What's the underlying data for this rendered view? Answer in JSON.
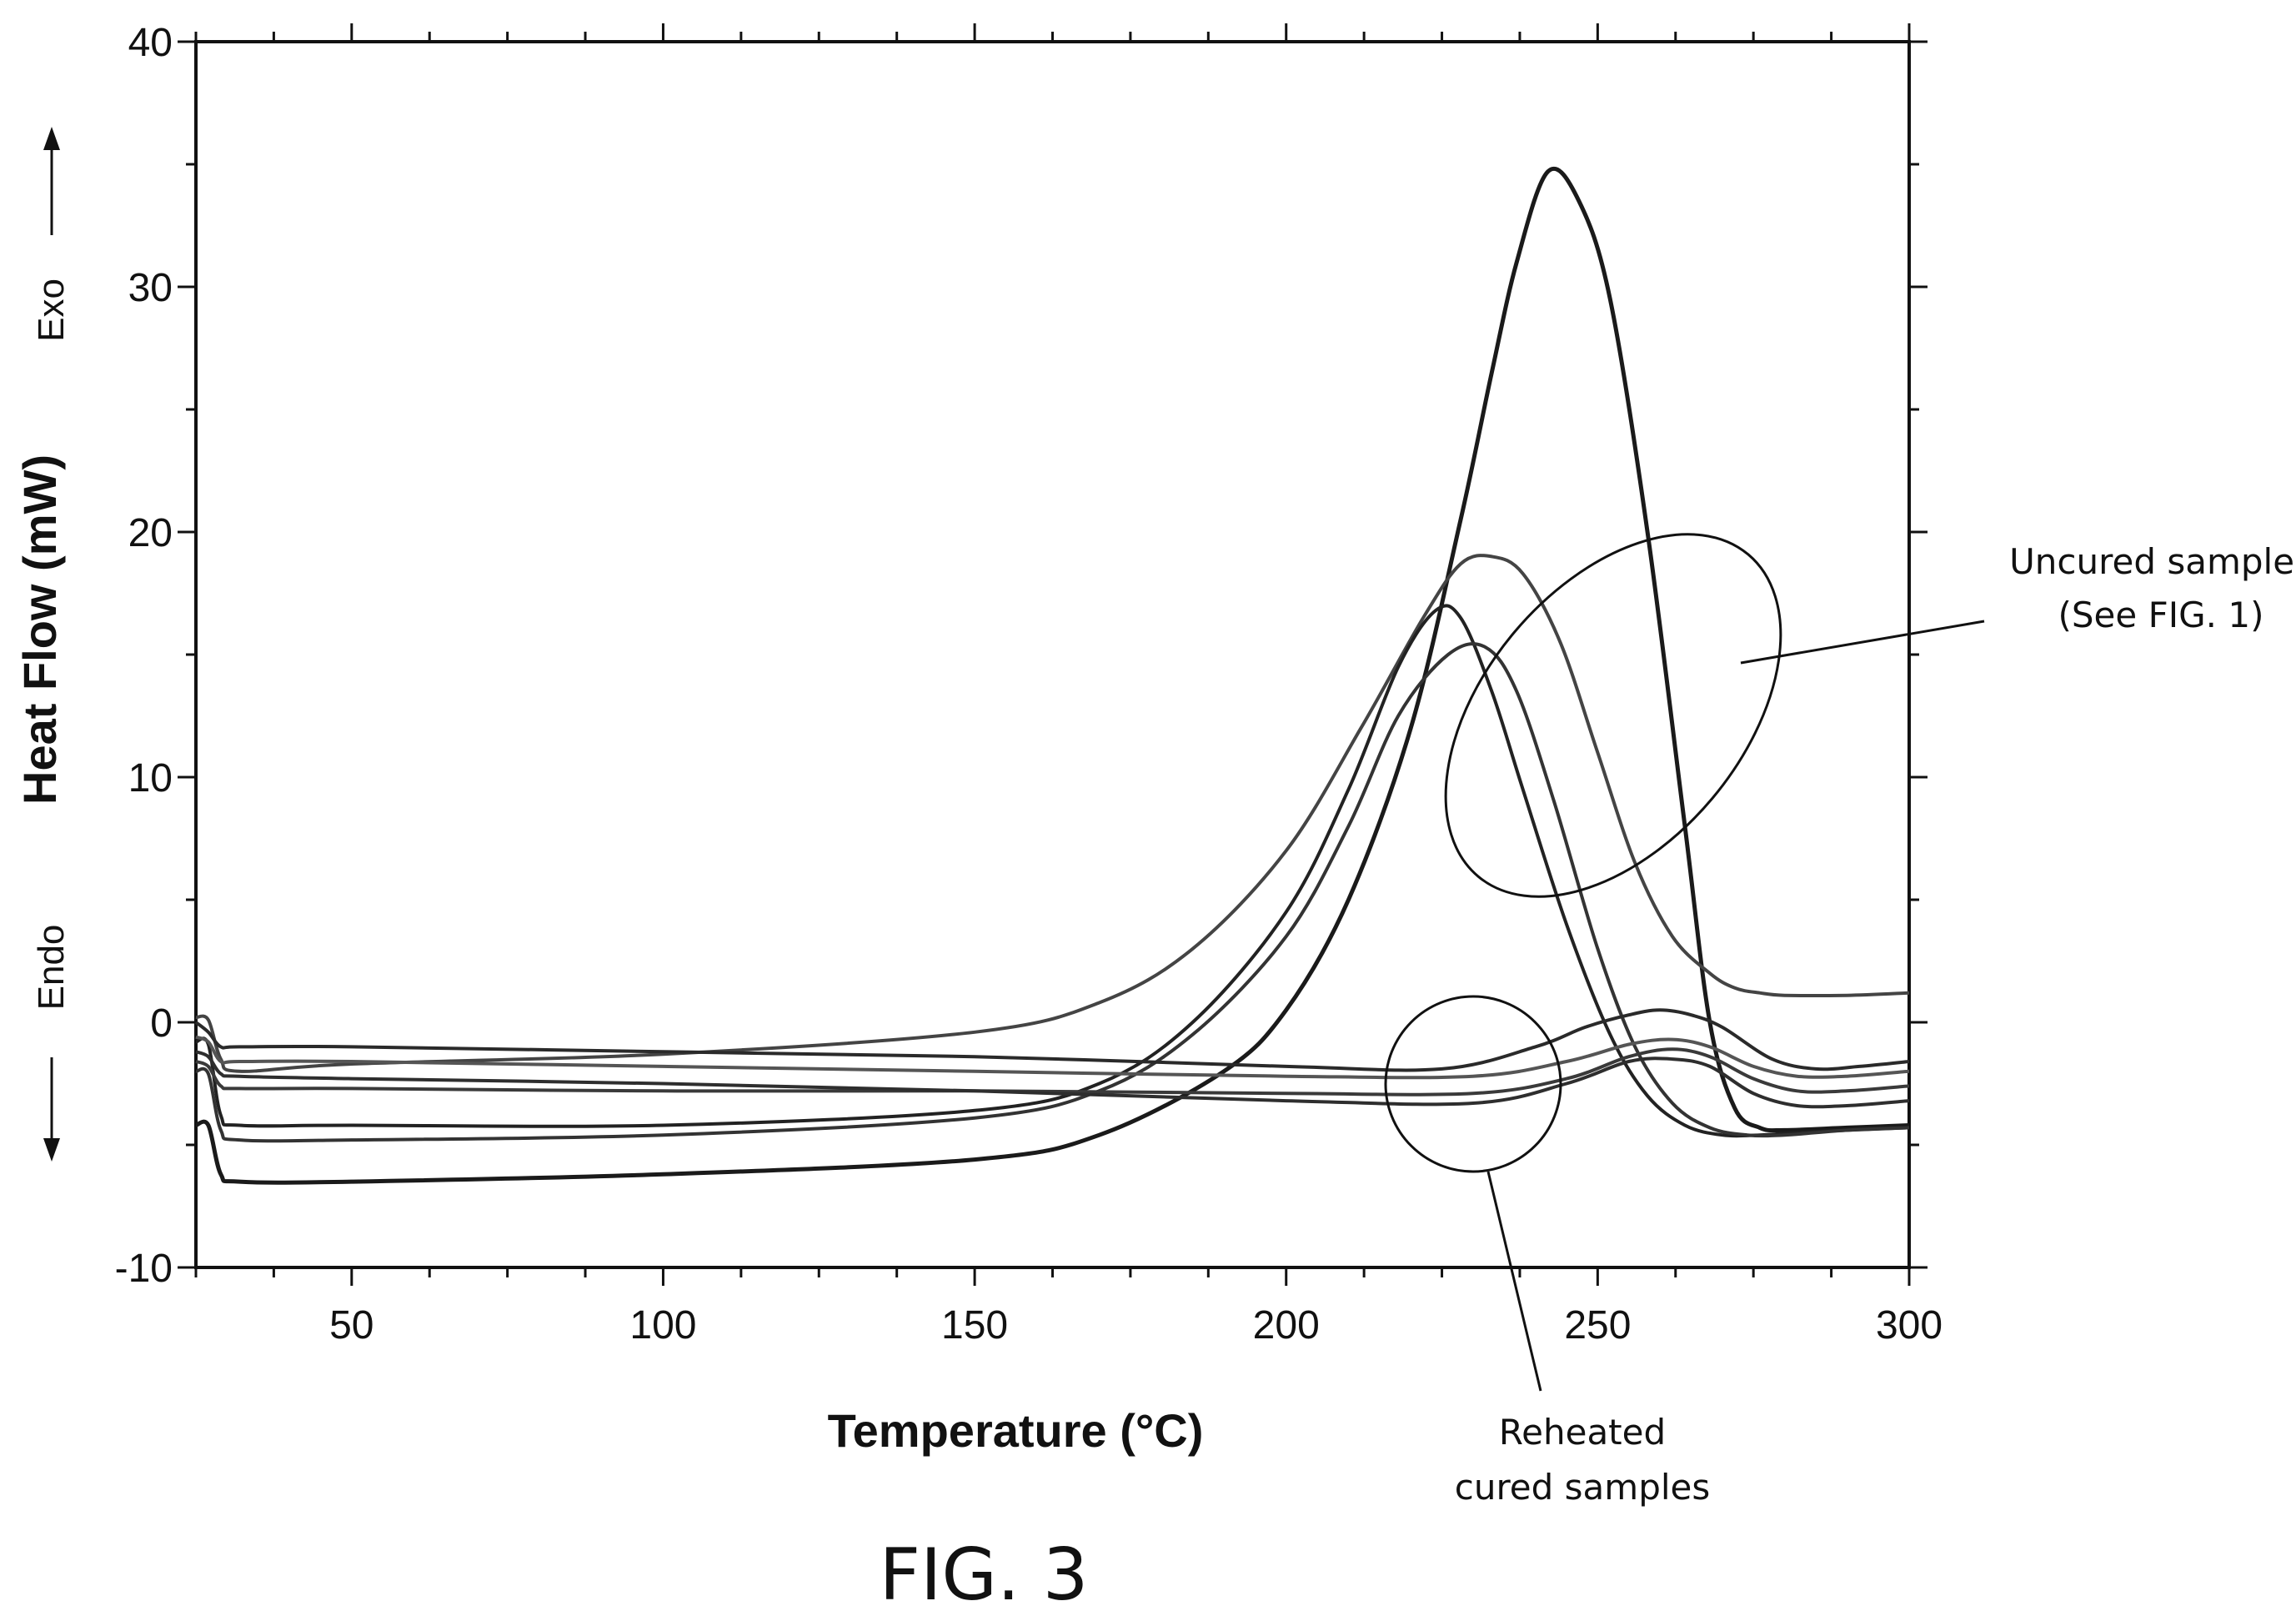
{
  "chart_data": {
    "type": "line",
    "title": "",
    "xlabel": "Temperature (°C)",
    "ylabel": "Heat Flow (mW)",
    "exo_label": "Exo",
    "endo_label": "Endo",
    "xlim": [
      25,
      300
    ],
    "ylim": [
      -10,
      40
    ],
    "x_ticks": [
      50,
      100,
      150,
      200,
      250,
      300
    ],
    "y_ticks": [
      -10,
      0,
      10,
      20,
      30,
      40
    ],
    "grid": false,
    "figure_label": "FIG. 3",
    "annotations": [
      {
        "name": "uncured",
        "lines": [
          "Uncured samples",
          "(See FIG. 1)"
        ]
      },
      {
        "name": "reheated",
        "lines": [
          "Reheated",
          "cured samples"
        ]
      }
    ],
    "series": [
      {
        "group": "uncured",
        "x": [
          25,
          27,
          29,
          32,
          50,
          100,
          150,
          170,
          190,
          200,
          210,
          220,
          228,
          233,
          237,
          242,
          247,
          252,
          258,
          264,
          268,
          272,
          276,
          280,
          290,
          300
        ],
        "y": [
          -4.2,
          -4.2,
          -6.2,
          -6.5,
          -6.5,
          -6.2,
          -5.6,
          -4.6,
          -2.0,
          0.5,
          5.0,
          12.0,
          20.5,
          26.5,
          31.0,
          34.7,
          33.5,
          29.5,
          20.0,
          8.0,
          0.0,
          -3.5,
          -4.3,
          -4.4,
          -4.3,
          -4.2
        ]
      },
      {
        "group": "uncured",
        "x": [
          25,
          27,
          29,
          32,
          50,
          100,
          150,
          170,
          185,
          200,
          212,
          222,
          228,
          233,
          238,
          244,
          250,
          256,
          262,
          268,
          272,
          276,
          280,
          290,
          300
        ],
        "y": [
          0.2,
          0.1,
          -1.5,
          -2.0,
          -1.7,
          -1.3,
          -0.4,
          0.8,
          3.0,
          7.0,
          12.0,
          16.5,
          18.7,
          19.0,
          18.3,
          15.5,
          11.0,
          6.5,
          3.5,
          2.0,
          1.4,
          1.2,
          1.1,
          1.1,
          1.2
        ]
      },
      {
        "group": "uncured",
        "x": [
          25,
          27,
          29,
          32,
          50,
          100,
          150,
          170,
          185,
          200,
          210,
          218,
          224,
          228,
          233,
          238,
          245,
          252,
          258,
          264,
          270,
          276,
          282,
          290,
          300
        ],
        "y": [
          -0.8,
          -0.9,
          -3.8,
          -4.2,
          -4.2,
          -4.2,
          -3.6,
          -2.5,
          0.0,
          4.5,
          9.5,
          14.5,
          16.8,
          16.5,
          13.5,
          9.5,
          4.0,
          -0.5,
          -3.0,
          -4.2,
          -4.6,
          -4.6,
          -4.5,
          -4.4,
          -4.3
        ]
      },
      {
        "group": "uncured",
        "x": [
          25,
          27,
          29,
          32,
          50,
          100,
          150,
          170,
          185,
          200,
          210,
          218,
          226,
          232,
          237,
          243,
          250,
          256,
          262,
          268,
          274,
          280,
          290,
          300
        ],
        "y": [
          -2.0,
          -2.1,
          -4.4,
          -4.8,
          -4.8,
          -4.6,
          -3.9,
          -2.8,
          -0.5,
          3.5,
          8.0,
          12.5,
          15.0,
          15.3,
          13.5,
          9.0,
          3.0,
          -1.0,
          -3.3,
          -4.3,
          -4.6,
          -4.6,
          -4.4,
          -4.3
        ]
      },
      {
        "group": "reheated",
        "x": [
          25,
          27,
          29,
          32,
          50,
          100,
          150,
          200,
          225,
          240,
          248,
          255,
          260,
          265,
          270,
          278,
          285,
          292,
          300
        ],
        "y": [
          0.0,
          -0.4,
          -1.0,
          -1.0,
          -1.0,
          -1.2,
          -1.4,
          -1.8,
          -1.9,
          -1.0,
          -0.2,
          0.3,
          0.5,
          0.3,
          -0.2,
          -1.5,
          -1.9,
          -1.8,
          -1.6
        ]
      },
      {
        "group": "reheated",
        "x": [
          25,
          27,
          29,
          32,
          50,
          100,
          150,
          200,
          230,
          245,
          255,
          262,
          268,
          275,
          282,
          290,
          300
        ],
        "y": [
          -0.6,
          -0.8,
          -1.6,
          -1.6,
          -1.6,
          -1.8,
          -2.0,
          -2.2,
          -2.2,
          -1.6,
          -0.9,
          -0.7,
          -1.0,
          -1.8,
          -2.2,
          -2.2,
          -2.0
        ]
      },
      {
        "group": "reheated",
        "x": [
          25,
          27,
          29,
          32,
          50,
          100,
          150,
          200,
          230,
          245,
          255,
          262,
          268,
          275,
          282,
          290,
          300
        ],
        "y": [
          -1.6,
          -1.8,
          -2.6,
          -2.7,
          -2.7,
          -2.8,
          -2.8,
          -2.9,
          -2.9,
          -2.3,
          -1.4,
          -1.1,
          -1.4,
          -2.3,
          -2.8,
          -2.8,
          -2.6
        ]
      },
      {
        "group": "reheated",
        "x": [
          25,
          27,
          29,
          32,
          50,
          100,
          150,
          200,
          230,
          245,
          255,
          262,
          268,
          275,
          282,
          290,
          300
        ],
        "y": [
          -1.2,
          -1.4,
          -2.1,
          -2.2,
          -2.3,
          -2.5,
          -2.8,
          -3.2,
          -3.3,
          -2.5,
          -1.6,
          -1.5,
          -1.8,
          -2.9,
          -3.4,
          -3.4,
          -3.2
        ]
      }
    ]
  }
}
